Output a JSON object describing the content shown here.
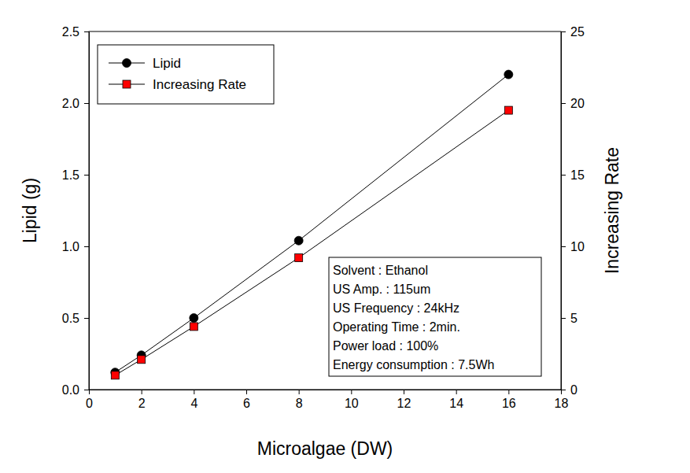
{
  "chart_data": {
    "type": "line",
    "x_label": "Microalgae (DW)",
    "y_label": "Lipid (g)",
    "y2_label": "Increasing Rate",
    "x": [
      1,
      2,
      4,
      8,
      16
    ],
    "series": [
      {
        "name": "Lipid",
        "color": "#000000",
        "marker": "circle",
        "line_style": "solid",
        "values": [
          0.12,
          0.24,
          0.5,
          1.04,
          2.2
        ]
      },
      {
        "name": "Increasing Rate",
        "color": "#ff0000",
        "marker": "square",
        "line_style": "solid",
        "axis": "y2",
        "values": [
          1.0,
          2.1,
          4.4,
          9.2,
          19.5
        ]
      }
    ],
    "xlim": [
      0,
      18
    ],
    "xticks": [
      0,
      2,
      4,
      6,
      8,
      10,
      12,
      14,
      16,
      18
    ],
    "ylim": [
      0,
      2.5
    ],
    "yticks": [
      {
        "value": 0,
        "label": "0.0"
      },
      0.5,
      {
        "value": 1,
        "label": "1.0"
      },
      1.5,
      {
        "value": 2,
        "label": "2.0"
      },
      2.5
    ],
    "y2lim": [
      0,
      25
    ],
    "y2ticks": [
      0,
      5,
      10,
      15,
      20,
      25
    ],
    "annotations": [
      "Solvent : Ethanol",
      "US Amp. : 115um",
      "US Frequency : 24kHz",
      "Operating Time : 2min.",
      "Power load : 100%",
      "Energy consumption : 7.5Wh"
    ],
    "legend": "top-left",
    "grid": false
  }
}
